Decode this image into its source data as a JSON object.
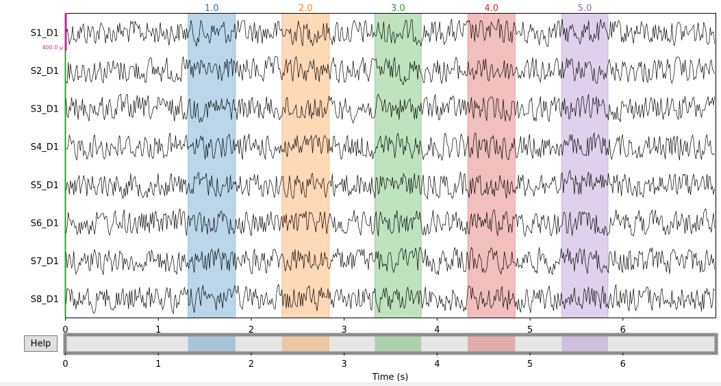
{
  "help_button": "Help",
  "scalebar_label": "400.0 µ",
  "colors": {
    "trace": "#000000",
    "scalebar": "#c2288a",
    "nav_bg": "#e6e6e6",
    "nav_frame": "#8c8c8c",
    "left_marker": "#2ca02c"
  },
  "chart_data": {
    "type": "line",
    "xlabel": "Time (s)",
    "xlim": [
      0,
      7
    ],
    "xticks": [
      "0",
      "1",
      "2",
      "3",
      "4",
      "5",
      "6"
    ],
    "channels": [
      "S1_D1",
      "S2_D1",
      "S3_D1",
      "S4_D1",
      "S5_D1",
      "S6_D1",
      "S7_D1",
      "S8_D1"
    ],
    "annotations": [
      {
        "label": "1.0",
        "start": 1.32,
        "end": 1.83,
        "color": "#1f77b4"
      },
      {
        "label": "2.0",
        "start": 2.33,
        "end": 2.84,
        "color": "#ff7f0e"
      },
      {
        "label": "3.0",
        "start": 3.33,
        "end": 3.83,
        "color": "#2ca02c"
      },
      {
        "label": "4.0",
        "start": 4.33,
        "end": 4.84,
        "color": "#d62728"
      },
      {
        "label": "5.0",
        "start": 5.34,
        "end": 5.84,
        "color": "#9467bd"
      }
    ]
  }
}
